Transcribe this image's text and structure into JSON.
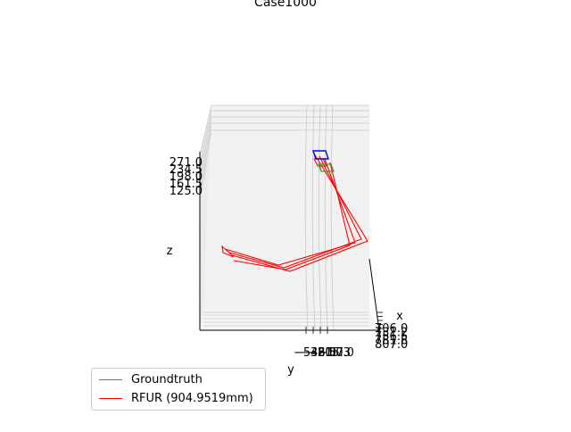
{
  "chart_data": {
    "type": "line3d",
    "title": "Case1000",
    "axes": {
      "x": {
        "label": "x",
        "ticks": [
          "706.0",
          "731.2",
          "756.5",
          "781.8",
          "807.0"
        ]
      },
      "y": {
        "label": "y",
        "ticks": [
          "−546.0",
          "−380.7",
          "−215.3",
          "−50.0"
        ]
      },
      "z": {
        "label": "z",
        "ticks": [
          "271.0",
          "234.5",
          "198.0",
          "161.5",
          "125.0"
        ]
      }
    },
    "grid": true,
    "legend_placement": "lower-left",
    "series": [
      {
        "name": "Groundtruth",
        "color": "#2ca02c"
      },
      {
        "name": "RFUR (904.9519mm)",
        "color": "#ff0000"
      }
    ],
    "extra_box_color": "#0000ff"
  }
}
